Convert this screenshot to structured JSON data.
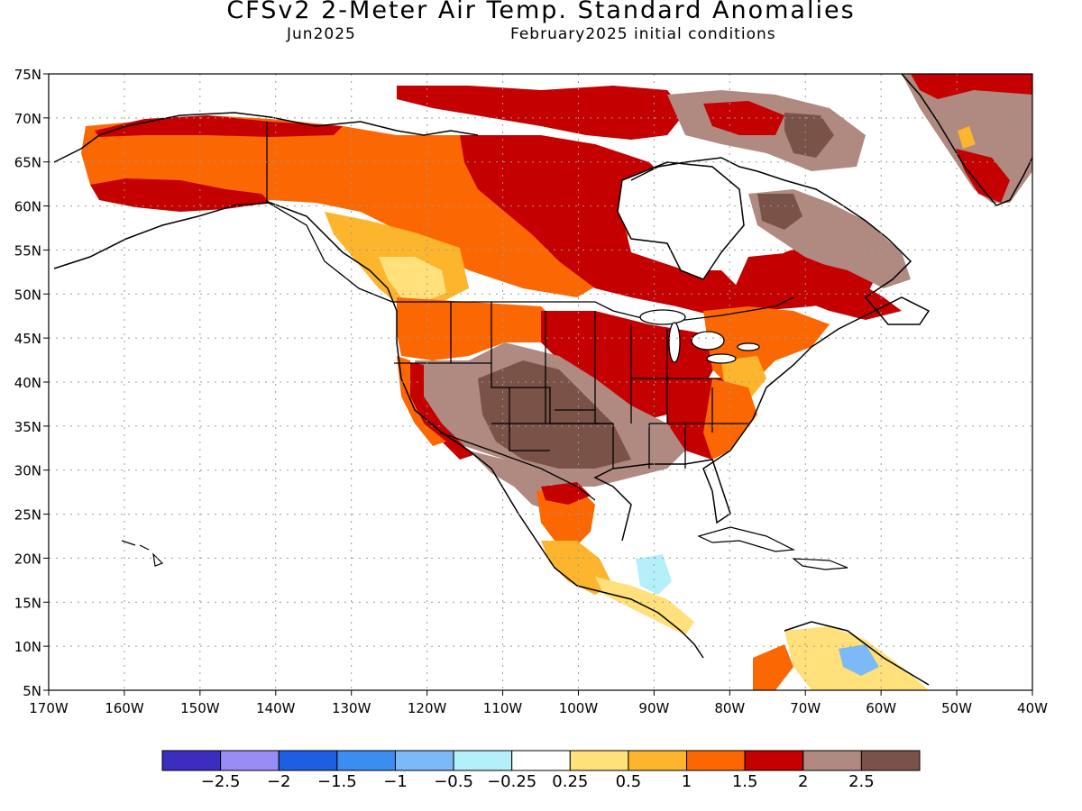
{
  "title": "CFSv2 2-Meter Air Temp. Standard Anomalies",
  "subtitle_left": "Jun2025",
  "subtitle_right": "February2025 initial conditions",
  "map": {
    "lon_range": [
      -170,
      -40
    ],
    "lat_range": [
      5,
      75
    ],
    "lat_labels": [
      "75N",
      "70N",
      "65N",
      "60N",
      "55N",
      "50N",
      "45N",
      "40N",
      "35N",
      "30N",
      "25N",
      "20N",
      "15N",
      "10N",
      "5N"
    ],
    "lon_labels": [
      "170W",
      "160W",
      "150W",
      "140W",
      "130W",
      "120W",
      "110W",
      "100W",
      "90W",
      "80W",
      "70W",
      "60W",
      "50W",
      "40W"
    ],
    "gridlines": "dotted",
    "colors": {
      "land_outline": "#000000",
      "ocean": "#ffffff",
      "anom_neg_025": "#b3f0fa",
      "anom_025_05": "#ffe07a",
      "anom_05_1": "#fcb52c",
      "anom_1_15": "#fb6702",
      "anom_15_2": "#c40000",
      "anom_2_25": "#b08a80",
      "anom_gt_25": "#7a5248"
    }
  },
  "colorbar": {
    "colors": [
      "#3b2dbf",
      "#9a8cf7",
      "#1d5fe0",
      "#3a8ef0",
      "#7db9f7",
      "#b3f0fa",
      "#ffffff",
      "#ffe07a",
      "#fcb52c",
      "#fb6702",
      "#c40000",
      "#b08a80",
      "#7a5248"
    ],
    "labels": [
      "-2.5",
      "-2",
      "-1.5",
      "-1",
      "-0.5",
      "-0.25",
      "0.25",
      "0.5",
      "1",
      "1.5",
      "2",
      "2.5"
    ]
  }
}
